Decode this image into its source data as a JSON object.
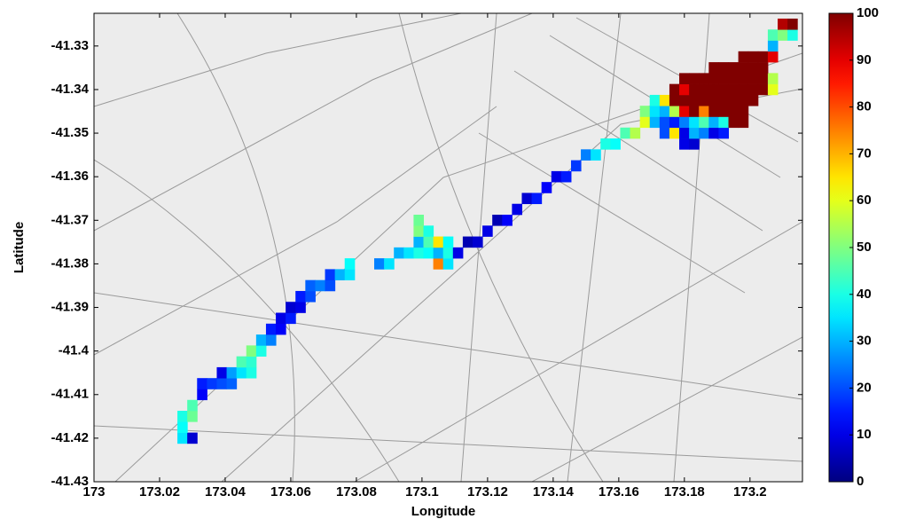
{
  "chart_data": {
    "type": "heatmap",
    "xlabel": "Longitude",
    "ylabel": "Latitude",
    "xlim": [
      173,
      173.216
    ],
    "ylim": [
      -41.43,
      -41.3225
    ],
    "xticks": [
      173,
      173.02,
      173.04,
      173.06,
      173.08,
      173.1,
      173.12,
      173.14,
      173.16,
      173.18,
      173.2
    ],
    "yticks": [
      -41.33,
      -41.34,
      -41.35,
      -41.36,
      -41.37,
      -41.38,
      -41.39,
      -41.4,
      -41.41,
      -41.42,
      -41.43
    ],
    "colormap": "jet",
    "clim": [
      0,
      100
    ],
    "cticks": [
      0,
      10,
      20,
      30,
      40,
      50,
      60,
      70,
      80,
      90,
      100
    ],
    "rows": [
      {
        "y": -41.42,
        "x": [
          173.027,
          173.03
        ],
        "values": [
          35,
          8
        ]
      },
      {
        "y": -41.4175,
        "x": [
          173.027
        ],
        "values": [
          38
        ]
      },
      {
        "y": -41.415,
        "x": [
          173.027,
          173.03
        ],
        "values": [
          40,
          48
        ]
      },
      {
        "y": -41.4125,
        "x": [
          173.03
        ],
        "values": [
          45
        ]
      },
      {
        "y": -41.41,
        "x": [
          173.033
        ],
        "values": [
          12
        ]
      },
      {
        "y": -41.4075,
        "x": [
          173.033,
          173.036,
          173.039,
          173.042
        ],
        "values": [
          15,
          18,
          20,
          22
        ]
      },
      {
        "y": -41.405,
        "x": [
          173.039,
          173.042,
          173.045,
          173.048
        ],
        "values": [
          10,
          28,
          35,
          40
        ]
      },
      {
        "y": -41.4025,
        "x": [
          173.045,
          173.048
        ],
        "values": [
          45,
          42
        ]
      },
      {
        "y": -41.4,
        "x": [
          173.048,
          173.051
        ],
        "values": [
          50,
          40
        ]
      },
      {
        "y": -41.3975,
        "x": [
          173.051,
          173.054
        ],
        "values": [
          30,
          25
        ]
      },
      {
        "y": -41.395,
        "x": [
          173.054,
          173.057
        ],
        "values": [
          15,
          12
        ]
      },
      {
        "y": -41.3925,
        "x": [
          173.057,
          173.06
        ],
        "values": [
          10,
          15
        ]
      },
      {
        "y": -41.39,
        "x": [
          173.06,
          173.063
        ],
        "values": [
          8,
          10
        ]
      },
      {
        "y": -41.3875,
        "x": [
          173.063,
          173.066
        ],
        "values": [
          15,
          20
        ]
      },
      {
        "y": -41.385,
        "x": [
          173.066,
          173.069,
          173.072
        ],
        "values": [
          22,
          25,
          20
        ]
      },
      {
        "y": -41.3825,
        "x": [
          173.072,
          173.075,
          173.078
        ],
        "values": [
          18,
          30,
          35
        ]
      },
      {
        "y": -41.38,
        "x": [
          173.078,
          173.087,
          173.09,
          173.105,
          173.108
        ],
        "values": [
          38,
          25,
          35,
          75,
          35
        ]
      },
      {
        "y": -41.3775,
        "x": [
          173.093,
          173.096,
          173.099,
          173.102,
          173.105,
          173.108,
          173.111
        ],
        "values": [
          30,
          35,
          40,
          38,
          30,
          40,
          10
        ]
      },
      {
        "y": -41.375,
        "x": [
          173.099,
          173.102,
          173.105,
          173.108,
          173.114,
          173.117
        ],
        "values": [
          30,
          45,
          65,
          38,
          5,
          8
        ]
      },
      {
        "y": -41.3725,
        "x": [
          173.099,
          173.102,
          173.12
        ],
        "values": [
          50,
          40,
          10
        ]
      },
      {
        "y": -41.37,
        "x": [
          173.099,
          173.123,
          173.126
        ],
        "values": [
          48,
          5,
          12
        ]
      },
      {
        "y": -41.3675,
        "x": [
          173.129
        ],
        "values": [
          10
        ]
      },
      {
        "y": -41.365,
        "x": [
          173.132,
          173.135
        ],
        "values": [
          8,
          15
        ]
      },
      {
        "y": -41.3625,
        "x": [
          173.138
        ],
        "values": [
          12
        ]
      },
      {
        "y": -41.36,
        "x": [
          173.141,
          173.144
        ],
        "values": [
          10,
          15
        ]
      },
      {
        "y": -41.3575,
        "x": [
          173.147
        ],
        "values": [
          18
        ]
      },
      {
        "y": -41.355,
        "x": [
          173.15,
          173.153
        ],
        "values": [
          25,
          35
        ]
      },
      {
        "y": -41.3525,
        "x": [
          173.156,
          173.159,
          173.18,
          173.183
        ],
        "values": [
          40,
          38,
          10,
          8
        ]
      },
      {
        "y": -41.35,
        "x": [
          173.162,
          173.165,
          173.174,
          173.177,
          173.18,
          173.183,
          173.186,
          173.189,
          173.192
        ],
        "values": [
          45,
          55,
          20,
          65,
          10,
          30,
          25,
          10,
          15
        ]
      },
      {
        "y": -41.3475,
        "x": [
          173.168,
          173.171,
          173.174,
          173.177,
          173.18,
          173.183,
          173.186,
          173.189,
          173.192,
          173.195,
          173.198
        ],
        "values": [
          60,
          30,
          20,
          15,
          25,
          35,
          45,
          30,
          40,
          100,
          100
        ]
      },
      {
        "y": -41.345,
        "x": [
          173.168,
          173.171,
          173.174,
          173.177,
          173.18,
          173.183,
          173.186,
          173.189,
          173.192,
          173.195,
          173.198
        ],
        "values": [
          50,
          35,
          30,
          55,
          90,
          100,
          75,
          100,
          100,
          100,
          100
        ]
      },
      {
        "y": -41.3425,
        "x": [
          173.171,
          173.174,
          173.177,
          173.18,
          173.183,
          173.186,
          173.189,
          173.192,
          173.195,
          173.198,
          173.201
        ],
        "values": [
          40,
          65,
          100,
          100,
          100,
          100,
          100,
          100,
          100,
          100,
          100
        ]
      },
      {
        "y": -41.34,
        "x": [
          173.177,
          173.18,
          173.183,
          173.186,
          173.189,
          173.192,
          173.195,
          173.198,
          173.201,
          173.204,
          173.207
        ],
        "values": [
          100,
          90,
          100,
          100,
          100,
          100,
          100,
          100,
          100,
          100,
          60
        ]
      },
      {
        "y": -41.3375,
        "x": [
          173.18,
          173.183,
          173.186,
          173.189,
          173.192,
          173.195,
          173.198,
          173.201,
          173.204,
          173.207
        ],
        "values": [
          100,
          100,
          100,
          100,
          100,
          100,
          100,
          100,
          100,
          55
        ]
      },
      {
        "y": -41.335,
        "x": [
          173.189,
          173.192,
          173.195,
          173.198,
          173.201,
          173.204
        ],
        "values": [
          100,
          100,
          100,
          100,
          100,
          100
        ]
      },
      {
        "y": -41.3325,
        "x": [
          173.198,
          173.201,
          173.204,
          173.207
        ],
        "values": [
          100,
          100,
          100,
          90
        ]
      },
      {
        "y": -41.33,
        "x": [
          173.207
        ],
        "values": [
          30
        ]
      },
      {
        "y": -41.3275,
        "x": [
          173.207,
          173.21,
          173.213
        ],
        "values": [
          45,
          50,
          40
        ]
      },
      {
        "y": -41.325,
        "x": [
          173.21,
          173.213
        ],
        "values": [
          95,
          100
        ]
      }
    ]
  }
}
